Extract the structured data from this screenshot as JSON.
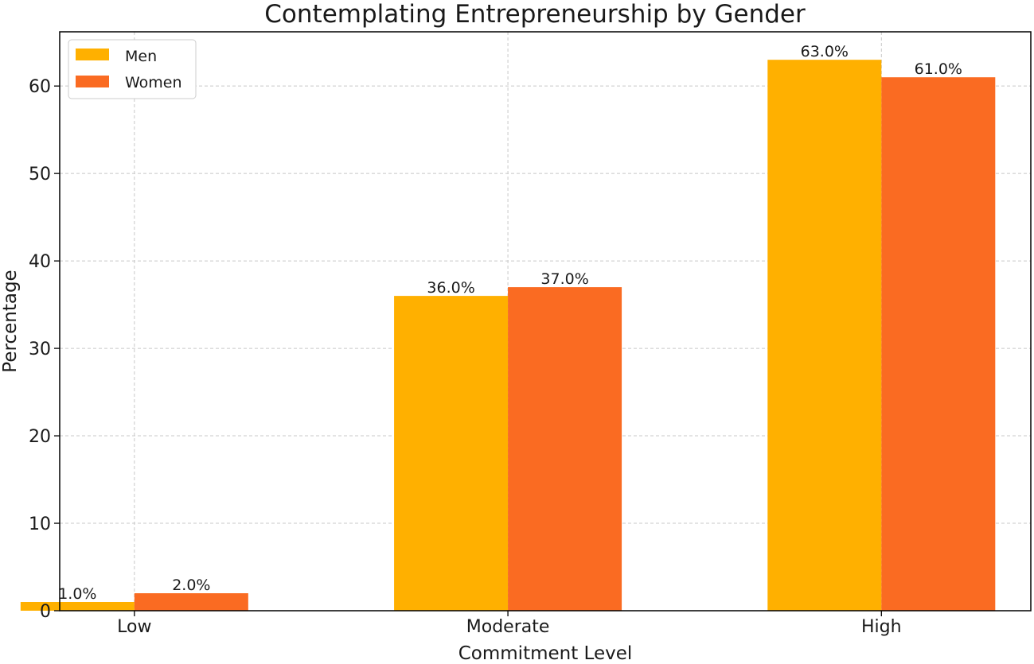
{
  "chart_data": {
    "type": "bar",
    "title": "Contemplating Entrepreneurship by Gender",
    "xlabel": "Commitment Level",
    "ylabel": "Percentage",
    "categories": [
      "Low",
      "Moderate",
      "High"
    ],
    "series": [
      {
        "name": "Men",
        "values": [
          1.0,
          36.0,
          63.0
        ],
        "color": "#FFB000",
        "labels": [
          "1.0%",
          "36.0%",
          "63.0%"
        ]
      },
      {
        "name": "Women",
        "values": [
          2.0,
          37.0,
          61.0
        ],
        "color": "#FA6B22",
        "labels": [
          "2.0%",
          "37.0%",
          "61.0%"
        ]
      }
    ],
    "ylim": [
      0,
      66.2
    ],
    "yticks": [
      0,
      10,
      20,
      30,
      40,
      50,
      60
    ],
    "grid": true,
    "legend_position": "top-left"
  }
}
